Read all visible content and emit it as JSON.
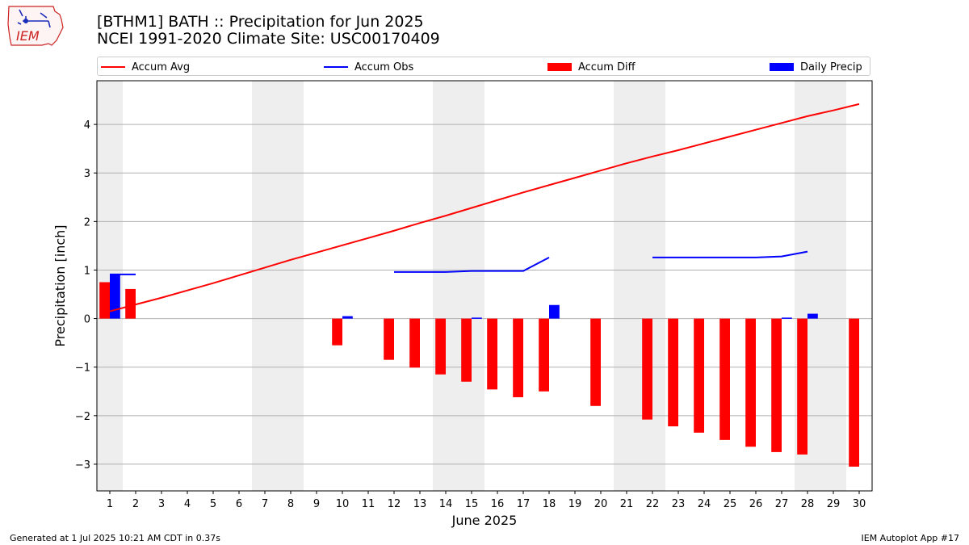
{
  "header": {
    "title_line1": "[BTHM1] BATH :: Precipitation for Jun 2025",
    "title_line2": "NCEI 1991-2020 Climate Site: USC00170409",
    "logo_text": "IEM"
  },
  "legend": {
    "items": [
      {
        "label": "Accum Avg",
        "kind": "line",
        "color": "#ff0000"
      },
      {
        "label": "Accum Obs",
        "kind": "line",
        "color": "#0000ff"
      },
      {
        "label": "Accum Diff",
        "kind": "bar",
        "color": "#ff0000"
      },
      {
        "label": "Daily Precip",
        "kind": "bar",
        "color": "#0000ff"
      }
    ]
  },
  "footer": {
    "left": "Generated at 1 Jul 2025 10:21 AM CDT in 0.37s",
    "right": "IEM Autoplot App #17"
  },
  "colors": {
    "avg": "#ff0000",
    "obs": "#0000ff",
    "diff": "#ff0000",
    "daily": "#0000ff",
    "weekend": "#eeeeee",
    "grid": "#b0b0b0"
  },
  "chart_data": {
    "type": "bar",
    "xlabel": "June 2025",
    "ylabel": "Precipitation [inch]",
    "xlim": [
      0.5,
      30.5
    ],
    "ylim": [
      -3.55,
      4.9
    ],
    "yticks": [
      -3,
      -2,
      -1,
      0,
      1,
      2,
      3,
      4
    ],
    "ytick_labels": [
      "−3",
      "−2",
      "−1",
      "0",
      "1",
      "2",
      "3",
      "4"
    ],
    "days": [
      1,
      2,
      3,
      4,
      5,
      6,
      7,
      8,
      9,
      10,
      11,
      12,
      13,
      14,
      15,
      16,
      17,
      18,
      19,
      20,
      21,
      22,
      23,
      24,
      25,
      26,
      27,
      28,
      29,
      30
    ],
    "weekend_days": [
      1,
      7,
      8,
      14,
      15,
      21,
      22,
      28,
      29
    ],
    "grid": true,
    "series": [
      {
        "name": "Accum Avg",
        "kind": "line",
        "values": [
          0.15,
          0.29,
          0.43,
          0.58,
          0.73,
          0.89,
          1.05,
          1.21,
          1.36,
          1.51,
          1.66,
          1.81,
          1.97,
          2.12,
          2.28,
          2.44,
          2.6,
          2.75,
          2.9,
          3.05,
          3.2,
          3.34,
          3.47,
          3.61,
          3.75,
          3.89,
          4.03,
          4.17,
          4.29,
          4.42
        ]
      },
      {
        "name": "Accum Obs",
        "kind": "line",
        "values": [
          0.91,
          0.91,
          null,
          null,
          null,
          null,
          null,
          null,
          null,
          null,
          null,
          0.96,
          0.96,
          0.96,
          0.98,
          0.98,
          0.98,
          1.26,
          null,
          null,
          null,
          1.26,
          1.26,
          1.26,
          1.26,
          1.26,
          1.28,
          1.38,
          null,
          null
        ]
      },
      {
        "name": "Accum Diff",
        "kind": "bar",
        "values": [
          0.75,
          0.61,
          null,
          null,
          null,
          null,
          null,
          null,
          null,
          -0.55,
          null,
          -0.85,
          -1.01,
          -1.15,
          -1.3,
          -1.46,
          -1.62,
          -1.5,
          null,
          -1.8,
          null,
          -2.08,
          -2.22,
          -2.35,
          -2.5,
          -2.64,
          -2.75,
          -2.8,
          null,
          -3.05
        ]
      },
      {
        "name": "Daily Precip",
        "kind": "bar",
        "values": [
          0.91,
          0,
          0,
          0,
          0,
          0,
          0,
          0,
          0,
          0.05,
          0,
          0,
          0,
          0,
          0.02,
          0,
          0,
          0.28,
          0,
          0,
          0,
          0,
          0,
          0,
          0,
          0,
          0.02,
          0.1,
          0,
          0
        ]
      }
    ]
  }
}
